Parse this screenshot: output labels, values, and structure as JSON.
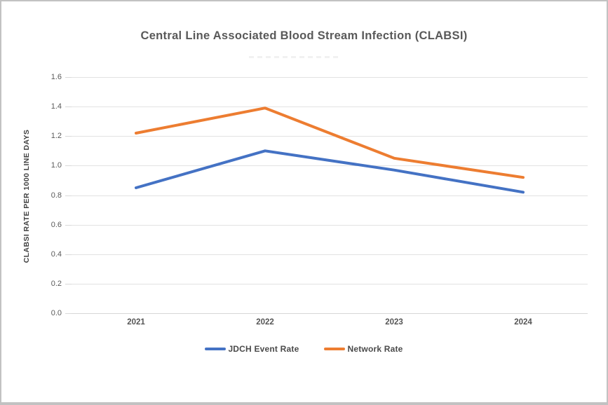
{
  "title": "Central Line Associated Blood Stream Infection (CLABSI)",
  "chart_data": {
    "type": "line",
    "categories": [
      "2021",
      "2022",
      "2023",
      "2024"
    ],
    "series": [
      {
        "name": "JDCH Event Rate",
        "color": "#4472C4",
        "values": [
          0.85,
          1.1,
          0.97,
          0.82
        ]
      },
      {
        "name": "Network Rate",
        "color": "#ED7D31",
        "values": [
          1.22,
          1.39,
          1.05,
          0.92
        ]
      }
    ],
    "xlabel": "",
    "ylabel": "CLABSI RATE PER 1000 LINE DAYS",
    "ylim": [
      0.0,
      1.6
    ],
    "ytick_step": 0.2,
    "yticks": [
      "1.6",
      "1.4",
      "1.2",
      "1.0",
      "0.8",
      "0.6",
      "0.4",
      "0.2",
      "0.0"
    ],
    "grid": true,
    "legend_position": "bottom"
  }
}
